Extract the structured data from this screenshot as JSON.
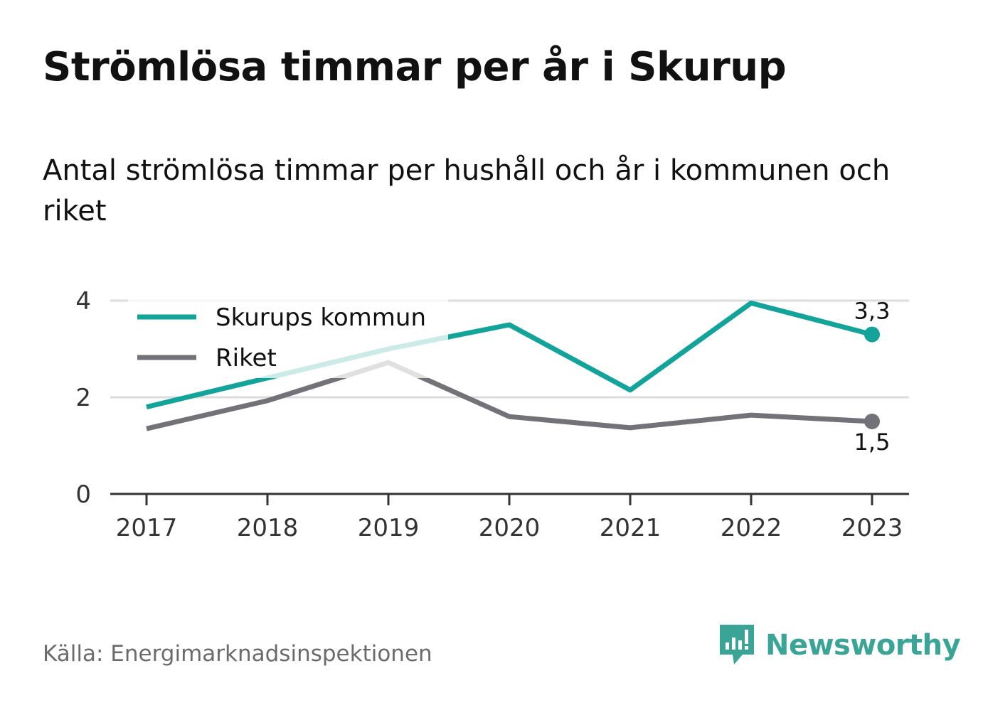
{
  "title": "Strömlösa timmar per år i Skurup",
  "subtitle": "Antal strömlösa timmar per hushåll och år i kommunen och riket",
  "source": "Källa: Energimarknadsinspektionen",
  "brand": {
    "name": "Newsworthy",
    "icon": "newsworthy-logo-icon",
    "color": "#3aa596"
  },
  "chart_data": {
    "type": "line",
    "x": [
      "2017",
      "2018",
      "2019",
      "2020",
      "2021",
      "2022",
      "2023"
    ],
    "ylim": [
      0,
      4
    ],
    "yticks": [
      "0",
      "2",
      "4"
    ],
    "grid": true,
    "legend_position": "top-left",
    "series": [
      {
        "name": "Skurups kommun",
        "color": "#12a39a",
        "values": [
          1.8,
          2.4,
          3.0,
          3.5,
          2.15,
          3.95,
          3.3
        ],
        "end_label": "3,3"
      },
      {
        "name": "Riket",
        "color": "#737279",
        "values": [
          1.35,
          1.93,
          2.72,
          1.6,
          1.37,
          1.63,
          1.5
        ],
        "end_label": "1,5"
      }
    ]
  }
}
